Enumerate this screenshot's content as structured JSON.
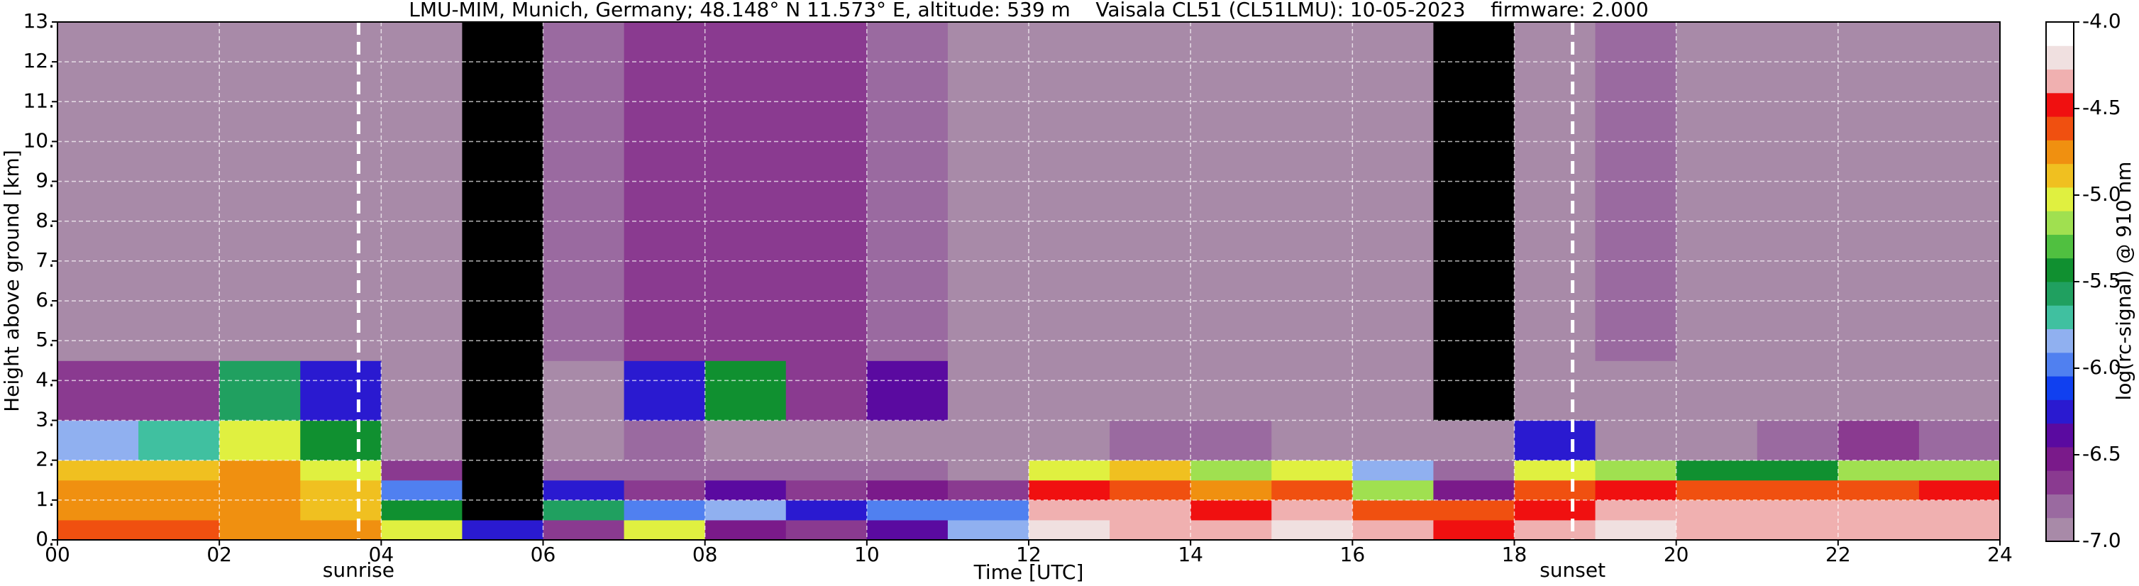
{
  "chart_data": {
    "type": "heatmap",
    "title": "LMU-MIM, Munich, Germany; 48.148° N 11.573° E, altitude: 539 m    Vaisala CL51 (CL51LMU): 10-05-2023    firmware: 2.000",
    "x_label": "Time [UTC]",
    "y_label": "Height above ground [km]",
    "xlim": [
      0,
      24
    ],
    "ylim": [
      0,
      13
    ],
    "xticks": [
      {
        "value": 0,
        "label": "00"
      },
      {
        "value": 2,
        "label": "02"
      },
      {
        "value": 4,
        "label": "04"
      },
      {
        "value": 6,
        "label": "06"
      },
      {
        "value": 8,
        "label": "08"
      },
      {
        "value": 10,
        "label": "10"
      },
      12,
      14,
      16,
      18,
      20,
      22,
      24
    ],
    "yticks": [
      {
        "value": 0,
        "label": "0."
      },
      {
        "value": 1,
        "label": "1."
      },
      {
        "value": 2,
        "label": "2."
      },
      {
        "value": 3,
        "label": "3."
      },
      {
        "value": 4,
        "label": "4."
      },
      {
        "value": 5,
        "label": "5."
      },
      {
        "value": 6,
        "label": "6."
      },
      {
        "value": 7,
        "label": "7."
      },
      {
        "value": 8,
        "label": "8."
      },
      {
        "value": 9,
        "label": "9."
      },
      {
        "value": 10,
        "label": "10."
      },
      {
        "value": 11,
        "label": "11."
      },
      {
        "value": 12,
        "label": "12."
      },
      {
        "value": 13,
        "label": "13."
      }
    ],
    "grid": true,
    "x_edges": [
      0,
      1,
      2,
      3,
      4,
      5,
      6,
      7,
      8,
      9,
      10,
      11,
      12,
      13,
      14,
      15,
      16,
      17,
      18,
      19,
      20,
      21,
      22,
      23,
      24
    ],
    "y_edges": [
      0,
      0.5,
      1,
      1.5,
      2,
      3,
      4.5,
      13
    ],
    "z": [
      [
        -4.6,
        -4.6,
        -4.7,
        -4.8,
        -5.0,
        -6.2,
        -6.6,
        -5.0,
        -6.5,
        -6.6,
        -6.4,
        -5.8,
        -4.2,
        -4.3,
        -4.4,
        -4.2,
        -4.4,
        -4.5,
        -4.4,
        -4.2,
        -4.3,
        -4.3,
        -4.3,
        -4.3
      ],
      [
        -4.7,
        -4.7,
        -4.8,
        -4.9,
        -5.4,
        -7.2,
        -5.6,
        -6.0,
        -5.8,
        -6.2,
        -6.0,
        -6.0,
        -4.3,
        -4.3,
        -4.5,
        -4.3,
        -4.6,
        -4.6,
        -4.5,
        -4.3,
        -4.4,
        -4.3,
        -4.4,
        -4.4
      ],
      [
        -4.8,
        -4.8,
        -4.7,
        -4.9,
        -6.0,
        -7.2,
        -6.2,
        -6.6,
        -6.4,
        -6.6,
        -6.5,
        -6.7,
        -4.5,
        -4.6,
        -4.7,
        -4.6,
        -5.2,
        -6.5,
        -4.6,
        -4.5,
        -4.6,
        -4.6,
        -4.6,
        -4.5
      ],
      [
        -4.9,
        -4.9,
        -4.8,
        -5.0,
        -6.6,
        -7.2,
        -6.8,
        -6.8,
        -6.8,
        -6.8,
        -6.8,
        -6.9,
        -5.0,
        -4.9,
        -5.2,
        -5.0,
        -5.8,
        -6.8,
        -5.0,
        -5.2,
        -5.4,
        -5.5,
        -5.2,
        -5.2
      ],
      [
        -5.8,
        -5.7,
        -5.0,
        -5.4,
        -6.9,
        -7.2,
        -7.0,
        -6.8,
        -6.9,
        -6.9,
        -6.9,
        -7.0,
        -6.9,
        -6.8,
        -6.8,
        -6.9,
        -6.9,
        -7.0,
        -6.2,
        -6.9,
        -6.9,
        -6.8,
        -6.6,
        -6.8
      ],
      [
        -6.6,
        -6.6,
        -5.6,
        -6.2,
        -7.0,
        -7.2,
        -6.9,
        -6.2,
        -5.5,
        -6.6,
        -6.4,
        -6.9,
        -7.0,
        -6.9,
        -6.9,
        -6.9,
        -6.9,
        -7.1,
        -6.9,
        -6.9,
        -6.9,
        -6.9,
        -6.9,
        -7.0
      ],
      [
        -6.9,
        -6.9,
        -6.9,
        -6.9,
        -7.0,
        -7.2,
        -6.8,
        -6.7,
        -6.6,
        -6.7,
        -6.8,
        -6.9,
        -7.0,
        -6.9,
        -6.9,
        -6.9,
        -7.0,
        -7.1,
        -6.9,
        -6.8,
        -6.9,
        -6.9,
        -7.0,
        -7.0
      ]
    ],
    "under_color": "#000000",
    "colorbar": {
      "label": "log(rc-signal) @ 910 nm",
      "vlim": [
        -7,
        -4
      ],
      "ticks": [
        {
          "value": -4,
          "label": "-4.0"
        },
        {
          "value": -4.5,
          "label": "-4.5"
        },
        {
          "value": -5,
          "label": "-5.0"
        },
        {
          "value": -5.5,
          "label": "-5.5"
        },
        {
          "value": -6,
          "label": "-6.0"
        },
        {
          "value": -6.5,
          "label": "-6.5"
        },
        {
          "value": -7,
          "label": "-7.0"
        }
      ],
      "colors": [
        "#a88aa8",
        "#9a6aa0",
        "#8a3a90",
        "#7a1a8a",
        "#5a0aa0",
        "#2a1ad0",
        "#1040f0",
        "#5080f0",
        "#90b0f0",
        "#40c0a0",
        "#20a060",
        "#109030",
        "#50c040",
        "#a0e050",
        "#e0f040",
        "#f0c020",
        "#f09010",
        "#f05010",
        "#f01010",
        "#f0b0b0",
        "#f0e0e0",
        "#ffffff"
      ]
    },
    "annotations": [
      {
        "x": 3.72,
        "label": "sunrise"
      },
      {
        "x": 18.72,
        "label": "sunset"
      }
    ]
  }
}
